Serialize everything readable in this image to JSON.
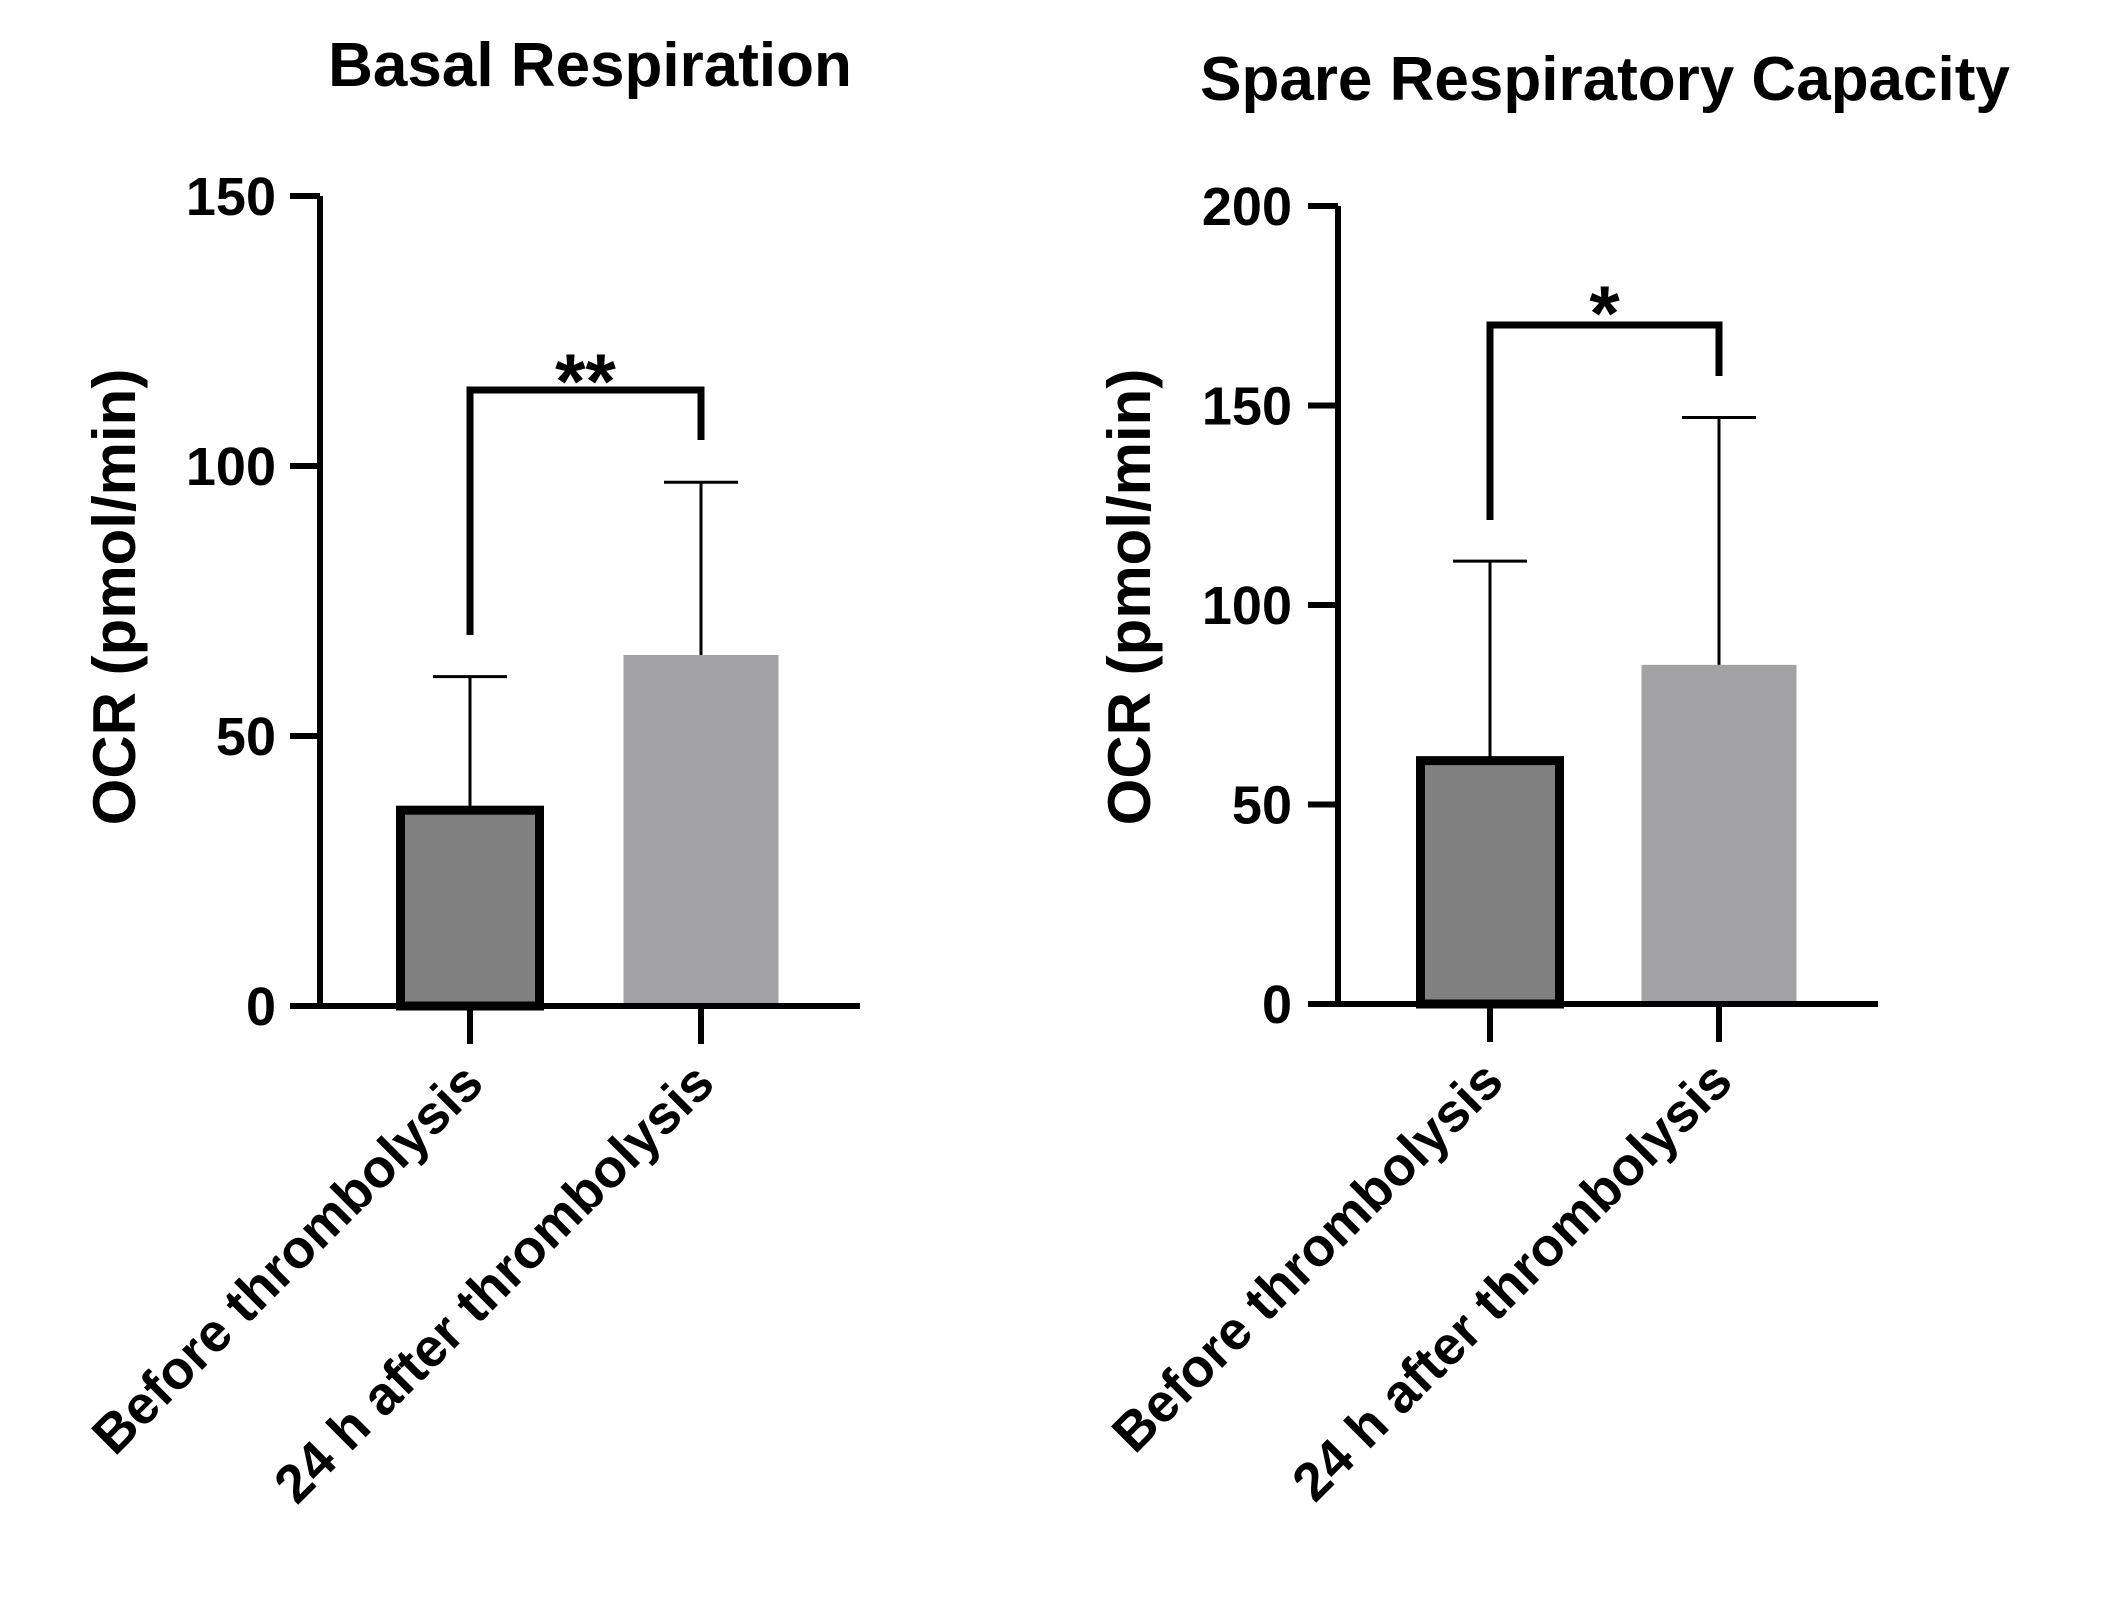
{
  "chart_data": [
    {
      "type": "bar",
      "title": "Basal Respiration",
      "ylabel": "OCR (pmol/min)",
      "xlabel": "",
      "categories": [
        "Before thrombolysis",
        "24 h after thrombolysis"
      ],
      "values": [
        37,
        65
      ],
      "error_upper": [
        61,
        97
      ],
      "ylim": [
        0,
        150
      ],
      "yticks": [
        0,
        50,
        100,
        150
      ],
      "colors": [
        "#808080",
        "#a2a2a5"
      ],
      "significance": "**",
      "grid": false
    },
    {
      "type": "bar",
      "title": "Spare Respiratory Capacity",
      "ylabel": "OCR (pmol/min)",
      "xlabel": "",
      "categories": [
        "Before thrombolysis",
        "24 h after thrombolysis"
      ],
      "values": [
        62,
        85
      ],
      "error_upper": [
        111,
        147
      ],
      "ylim": [
        0,
        200
      ],
      "yticks": [
        0,
        50,
        100,
        150,
        200
      ],
      "colors": [
        "#808080",
        "#a2a2a5"
      ],
      "significance": "*",
      "grid": false
    }
  ]
}
